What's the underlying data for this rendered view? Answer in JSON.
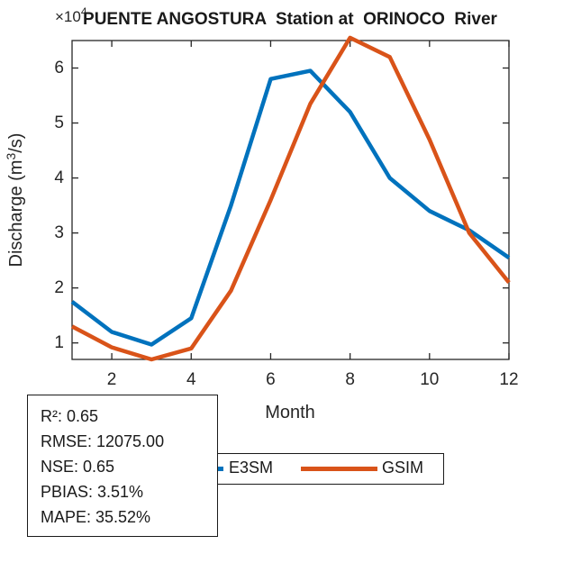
{
  "title": "PUENTE ANGOSTURA  Station at  ORINOCO  River",
  "labels": {
    "multiplier_base": "×10",
    "multiplier_exp": "4",
    "ylabel_prefix": "Discharge (m",
    "ylabel_exp": "3",
    "ylabel_suffix": "/s)",
    "xlabel": "Month"
  },
  "chart_data": {
    "type": "line",
    "title": "PUENTE ANGOSTURA  Station at  ORINOCO  River",
    "xlabel": "Month",
    "ylabel": "Discharge (m³/s)",
    "y_unit_multiplier": "×10⁴",
    "x": [
      1,
      2,
      3,
      4,
      5,
      6,
      7,
      8,
      9,
      10,
      11,
      12
    ],
    "xlim": [
      1,
      12
    ],
    "ylim": [
      0.7,
      6.5
    ],
    "xticks": [
      2,
      4,
      6,
      8,
      10,
      12
    ],
    "yticks": [
      1,
      2,
      3,
      4,
      5,
      6
    ],
    "grid": false,
    "legend_position": "below-axis",
    "series": [
      {
        "name": "E3SM",
        "color": "#0072BD",
        "values": [
          1.75,
          1.2,
          0.97,
          1.45,
          3.5,
          5.8,
          5.95,
          5.2,
          4.0,
          3.4,
          3.05,
          2.55
        ]
      },
      {
        "name": "GSIM",
        "color": "#D95319",
        "values": [
          1.3,
          0.92,
          0.7,
          0.9,
          1.95,
          3.6,
          5.35,
          6.55,
          6.2,
          4.7,
          3.0,
          2.1
        ]
      }
    ]
  },
  "legend": {
    "items": [
      {
        "label": "E3SM",
        "color": "#0072BD"
      },
      {
        "label": "GSIM",
        "color": "#D95319"
      }
    ]
  },
  "stats_box": {
    "lines": [
      "R²: 0.65",
      "RMSE: 12075.00",
      "NSE: 0.65",
      "PBIAS: 3.51%",
      "MAPE: 35.52%"
    ]
  },
  "colors": {
    "axis": "#262626",
    "background": "#ffffff",
    "e3sm_blue": "#0072BD",
    "gsim_orange": "#D95319"
  }
}
